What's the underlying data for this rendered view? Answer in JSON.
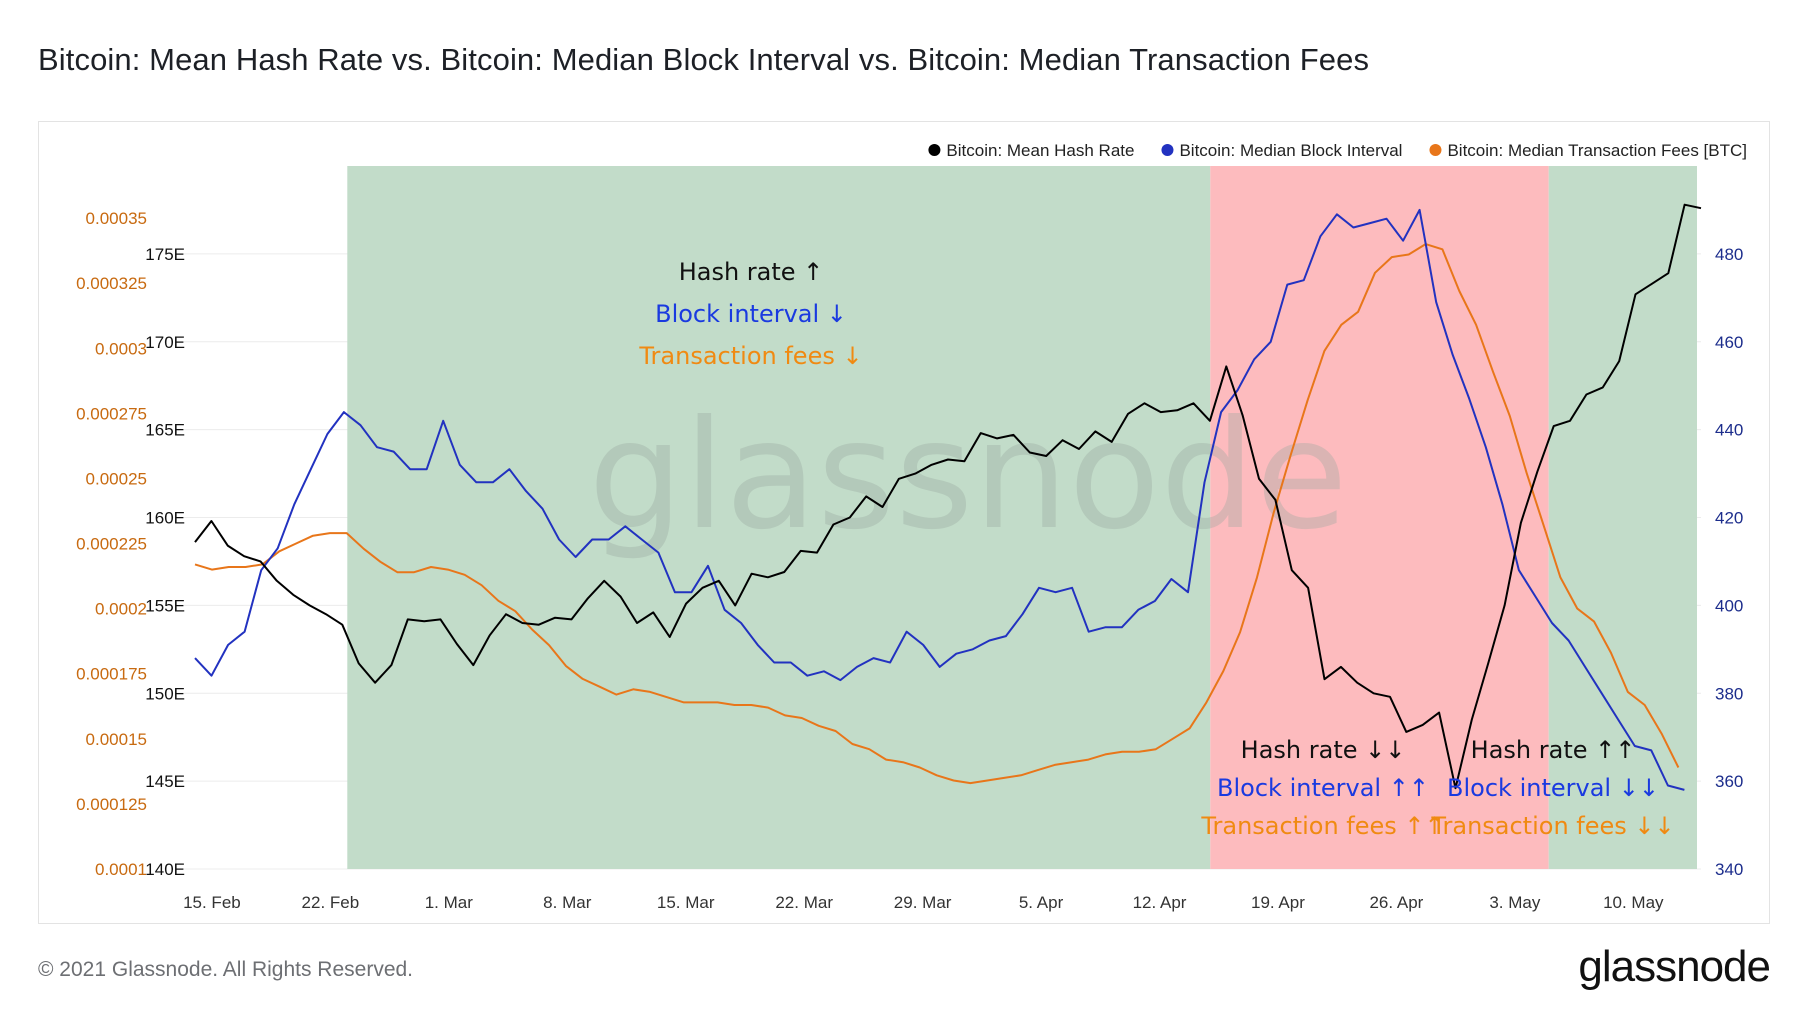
{
  "title": "Bitcoin: Mean Hash Rate vs. Bitcoin: Median Block Interval vs. Bitcoin: Median Transaction Fees",
  "footer": {
    "copyright": "© 2021 Glassnode. All Rights Reserved.",
    "logo": "glassnode"
  },
  "chart_data": {
    "type": "line",
    "watermark": "glassnode",
    "legend_position": "top-right",
    "grid": true,
    "x": {
      "start": "2021-02-14",
      "end": "2021-05-14",
      "tick_labels": [
        "15. Feb",
        "22. Feb",
        "1. Mar",
        "8. Mar",
        "15. Mar",
        "22. Mar",
        "29. Mar",
        "5. Apr",
        "12. Apr",
        "19. Apr",
        "26. Apr",
        "3. May",
        "10. May"
      ],
      "tick_dates": [
        "2021-02-15",
        "2021-02-22",
        "2021-03-01",
        "2021-03-08",
        "2021-03-15",
        "2021-03-22",
        "2021-03-29",
        "2021-04-05",
        "2021-04-12",
        "2021-04-19",
        "2021-04-26",
        "2021-05-03",
        "2021-05-10"
      ]
    },
    "axes": {
      "hash_rate": {
        "position": "left-inner",
        "range": [
          140,
          180
        ],
        "ticks": [
          140,
          145,
          150,
          155,
          160,
          165,
          170,
          175
        ],
        "tick_labels": [
          "140E",
          "145E",
          "150E",
          "155E",
          "160E",
          "165E",
          "170E",
          "175E"
        ],
        "color": "#111111"
      },
      "fees": {
        "position": "left-outer",
        "range": [
          0.0001,
          0.00037
        ],
        "ticks": [
          0.0001,
          0.000125,
          0.00015,
          0.000175,
          0.0002,
          0.000225,
          0.00025,
          0.000275,
          0.0003,
          0.000325,
          0.00035
        ],
        "tick_labels": [
          "0.0001",
          "0.000125",
          "0.00015",
          "0.000175",
          "0.0002",
          "0.000225",
          "0.00025",
          "0.000275",
          "0.0003",
          "0.000325",
          "0.00035"
        ],
        "color": "#c86a10"
      },
      "block_interval": {
        "position": "right",
        "range": [
          340,
          500
        ],
        "ticks": [
          340,
          360,
          380,
          400,
          420,
          440,
          460,
          480
        ],
        "tick_labels": [
          "340",
          "360",
          "380",
          "400",
          "420",
          "440",
          "460",
          "480"
        ],
        "color": "#1c2d8c"
      }
    },
    "regions": [
      {
        "start": "2021-02-23",
        "end": "2021-04-15",
        "color": "#c2dcc9"
      },
      {
        "start": "2021-04-15",
        "end": "2021-05-05",
        "color": "#fdbbbe"
      },
      {
        "start": "2021-05-05",
        "end": "2021-05-25",
        "color": "#c2dcc9"
      }
    ],
    "annotations": [
      {
        "lines": [
          "Hash rate ↑",
          "Block interval ↓",
          "Transaction fees ↓"
        ]
      },
      {
        "lines": [
          "Hash rate ↓↓",
          "Block interval ↑↑",
          "Transaction fees ↑↑"
        ]
      },
      {
        "lines": [
          "Hash rate ↑↑",
          "Block interval ↓↓",
          "Transaction fees ↓↓"
        ]
      }
    ],
    "annotation_colors": [
      "#111111",
      "#1a3ae0",
      "#f08a12"
    ],
    "series": [
      {
        "name": "Bitcoin: Mean Hash Rate",
        "axis": "hash_rate",
        "color": "#000000",
        "values": [
          158.6,
          159.8,
          158.4,
          157.8,
          157.5,
          156.4,
          155.6,
          155.0,
          154.5,
          153.9,
          151.7,
          150.6,
          151.6,
          154.2,
          154.1,
          154.2,
          152.8,
          151.6,
          153.3,
          154.5,
          154.0,
          153.9,
          154.3,
          154.2,
          155.4,
          156.4,
          155.5,
          154.0,
          154.6,
          153.2,
          155.1,
          156.0,
          156.4,
          155.0,
          156.8,
          156.6,
          156.9,
          158.1,
          158.0,
          159.6,
          160.0,
          161.2,
          160.6,
          162.2,
          162.5,
          163.0,
          163.3,
          163.2,
          164.8,
          164.5,
          164.7,
          163.7,
          163.5,
          164.4,
          163.9,
          164.9,
          164.3,
          165.9,
          166.5,
          166.0,
          166.1,
          166.5,
          165.5,
          168.6,
          165.8,
          162.2,
          161.0,
          157.0,
          156.0,
          150.8,
          151.5,
          150.6,
          150.0,
          149.8,
          147.8,
          148.2,
          148.9,
          144.6,
          148.5,
          151.7,
          155.0,
          159.7,
          162.6,
          165.2,
          165.5,
          167.0,
          167.4,
          168.9,
          172.7,
          173.3,
          173.9,
          177.8,
          177.6
        ]
      },
      {
        "name": "Bitcoin: Median Block Interval",
        "axis": "block_interval",
        "color": "#2232c0",
        "values": [
          388,
          384,
          391,
          394,
          408,
          413,
          423,
          431,
          439,
          444,
          441,
          436,
          435,
          431,
          431,
          442,
          432,
          428,
          428,
          431,
          426,
          422,
          415,
          411,
          415,
          415,
          418,
          415,
          412,
          403,
          403,
          409,
          399,
          396,
          391,
          387,
          387,
          384,
          385,
          383,
          386,
          388,
          387,
          394,
          391,
          386,
          389,
          390,
          392,
          393,
          398,
          404,
          403,
          404,
          394,
          395,
          395,
          399,
          401,
          406,
          403,
          428,
          444,
          449,
          456,
          460,
          473,
          474,
          484,
          489,
          486,
          487,
          488,
          483,
          490,
          469,
          457,
          447,
          436,
          423,
          408,
          402,
          396,
          392,
          386,
          380,
          374,
          368,
          367,
          359,
          358
        ]
      },
      {
        "name": "Bitcoin: Median Transaction Fees [BTC]",
        "axis": "fees",
        "color": "#e8761a",
        "values": [
          0.000217,
          0.000215,
          0.000216,
          0.000216,
          0.000217,
          0.000222,
          0.000225,
          0.000228,
          0.000229,
          0.000229,
          0.000223,
          0.000218,
          0.000214,
          0.000214,
          0.000216,
          0.000215,
          0.000213,
          0.000209,
          0.000203,
          0.000199,
          0.000192,
          0.000186,
          0.000178,
          0.000173,
          0.00017,
          0.000167,
          0.000169,
          0.000168,
          0.000166,
          0.000164,
          0.000164,
          0.000164,
          0.000163,
          0.000163,
          0.000162,
          0.000159,
          0.000158,
          0.000155,
          0.000153,
          0.000148,
          0.000146,
          0.000142,
          0.000141,
          0.000139,
          0.000136,
          0.000134,
          0.000133,
          0.000134,
          0.000135,
          0.000136,
          0.000138,
          0.00014,
          0.000141,
          0.000142,
          0.000144,
          0.000145,
          0.000145,
          0.000146,
          0.00015,
          0.000154,
          0.000164,
          0.000176,
          0.000191,
          0.000212,
          0.000237,
          0.000259,
          0.00028,
          0.000299,
          0.000309,
          0.000314,
          0.000329,
          0.000335,
          0.000336,
          0.00034,
          0.000338,
          0.000322,
          0.000309,
          0.000291,
          0.000274,
          0.000252,
          0.000232,
          0.000212,
          0.0002,
          0.000195,
          0.000183,
          0.000168,
          0.000163,
          0.000152,
          0.000139
        ]
      }
    ]
  }
}
